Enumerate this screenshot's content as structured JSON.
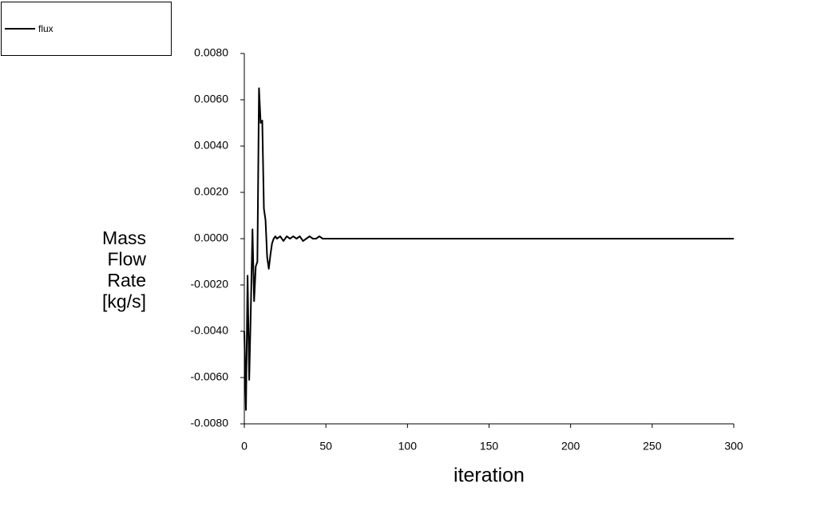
{
  "chart_data": {
    "type": "line",
    "xlabel": "iteration",
    "ylabel": [
      "Mass",
      "Flow",
      "Rate",
      "[kg/s]"
    ],
    "x": [
      0,
      1,
      2,
      3,
      4,
      5,
      6,
      7,
      8,
      9,
      10,
      11,
      12,
      13,
      14,
      15,
      16,
      17,
      18,
      19,
      20,
      22,
      24,
      26,
      28,
      30,
      32,
      34,
      36,
      38,
      40,
      42,
      44,
      46,
      48,
      50,
      300
    ],
    "series": [
      {
        "name": "flux",
        "color": "#000000",
        "values": [
          -0.004,
          -0.0074,
          -0.0016,
          -0.0061,
          -0.003,
          0.0004,
          -0.0027,
          -0.0012,
          -0.001,
          0.0065,
          0.005,
          0.0051,
          0.0013,
          0.0008,
          -0.0008,
          -0.0013,
          -0.0007,
          -0.0002,
          0.0,
          0.0001,
          0.0,
          0.0001,
          -0.0001,
          0.0001,
          0.0,
          0.0001,
          0.0,
          0.0001,
          -0.0001,
          0.0,
          0.0001,
          0.0,
          0.0,
          0.0001,
          0.0,
          0.0,
          0.0
        ]
      }
    ],
    "xlim": [
      0,
      300
    ],
    "xticks": [
      0,
      50,
      100,
      150,
      200,
      250,
      300
    ],
    "ylim": [
      -0.008,
      0.008
    ],
    "yticks": [
      {
        "value": -0.008,
        "label": "-0.0080"
      },
      {
        "value": -0.006,
        "label": "-0.0060"
      },
      {
        "value": -0.004,
        "label": "-0.0040"
      },
      {
        "value": -0.002,
        "label": "-0.0020"
      },
      {
        "value": 0,
        "label": "0.0000"
      },
      {
        "value": 0.002,
        "label": "0.0020"
      },
      {
        "value": 0.004,
        "label": "0.0040"
      },
      {
        "value": 0.006,
        "label": "0.0060"
      },
      {
        "value": 0.008,
        "label": "0.0080"
      }
    ],
    "legend": "top-left"
  }
}
